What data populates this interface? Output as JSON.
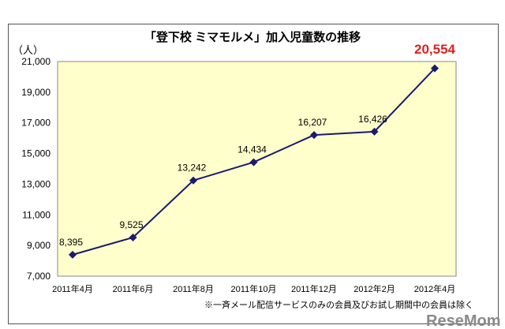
{
  "chart_data": {
    "type": "line",
    "title": "「登下校 ミマモルメ」加入児童数の推移",
    "ylabel": "（人）",
    "xlabel": "",
    "categories": [
      "2011年4月",
      "2011年6月",
      "2011年8月",
      "2011年10月",
      "2011年12月",
      "2012年2月",
      "2012年4月"
    ],
    "series": [
      {
        "name": "加入児童数",
        "values": [
          8395,
          9525,
          13242,
          14434,
          16207,
          16426,
          20554
        ]
      }
    ],
    "data_labels": [
      "8,395",
      "9,525",
      "13,242",
      "14,434",
      "16,207",
      "16,426",
      "20,554"
    ],
    "ylim": [
      7000,
      21000
    ],
    "yticks": [
      7000,
      9000,
      11000,
      13000,
      15000,
      17000,
      19000,
      21000
    ],
    "ytick_labels": [
      "7,000",
      "9,000",
      "11,000",
      "13,000",
      "15,000",
      "17,000",
      "19,000",
      "21,000"
    ],
    "grid": false,
    "footnote": "※一斉メール配信サービスのみの会員及びお試し期間中の会員は除く",
    "colors": {
      "line": "#1a1a6e",
      "plot_bg": "#ffffcc",
      "highlight": "#e02020"
    }
  },
  "watermark": "ReseMom"
}
